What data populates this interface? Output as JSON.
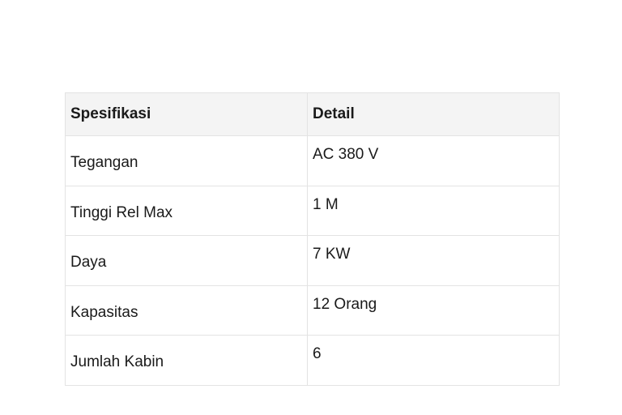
{
  "table": {
    "headers": [
      "Spesifikasi",
      "Detail"
    ],
    "rows": [
      [
        "Tegangan",
        "AC 380 V"
      ],
      [
        "Tinggi Rel Max",
        "1 M"
      ],
      [
        "Daya",
        "7 KW"
      ],
      [
        "Kapasitas",
        "12 Orang"
      ],
      [
        "Jumlah Kabin",
        "6"
      ]
    ]
  }
}
